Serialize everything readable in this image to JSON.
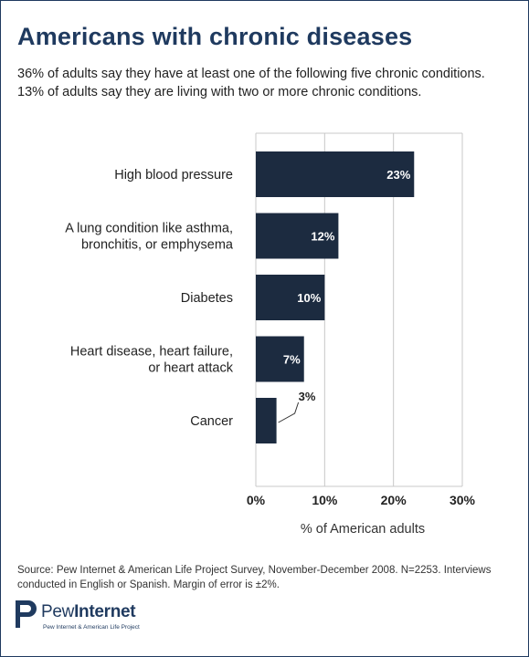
{
  "header": {
    "title": "Americans with chronic diseases",
    "subtitle_line1": "36% of adults say they have at least one of the following five chronic conditions.",
    "subtitle_line2": "13% of adults say they are living with two or more chronic conditions."
  },
  "chart_data": {
    "type": "bar",
    "orientation": "horizontal",
    "categories": [
      [
        "High blood pressure"
      ],
      [
        "A lung condition like asthma,",
        "bronchitis, or emphysema"
      ],
      [
        "Diabetes"
      ],
      [
        "Heart disease, heart failure,",
        "or heart attack"
      ],
      [
        "Cancer"
      ]
    ],
    "values": [
      23,
      12,
      10,
      7,
      3
    ],
    "data_labels": [
      "23%",
      "12%",
      "10%",
      "7%",
      "3%"
    ],
    "xlabel": "% of American adults",
    "xlim": [
      0,
      30
    ],
    "xticks": [
      0,
      10,
      20,
      30
    ],
    "xtick_labels": [
      "0%",
      "10%",
      "20%",
      "30%"
    ],
    "grid": true,
    "bar_color": "#1c2b40",
    "grid_color": "#c8c8c8"
  },
  "footer": {
    "source_line1": "Source: Pew Internet & American Life Project Survey, November-December 2008. N=2253. Interviews",
    "source_line2": "conducted in English or Spanish.  Margin of error is ±2%.",
    "logo_word1": "Pew",
    "logo_word2": "Internet",
    "logo_sub": "Pew Internet & American Life Project"
  },
  "colors": {
    "title": "#1f3a5f",
    "frame": "#1f3a5f"
  }
}
